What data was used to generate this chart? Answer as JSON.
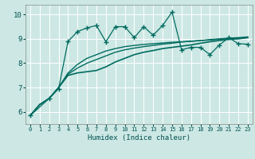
{
  "xlabel": "Humidex (Indice chaleur)",
  "background_color": "#cde8e4",
  "grid_color": "#ffffff",
  "line_color": "#006b60",
  "xlim": [
    -0.5,
    23.5
  ],
  "ylim": [
    5.5,
    10.4
  ],
  "yticks": [
    6,
    7,
    8,
    9,
    10
  ],
  "xticks": [
    0,
    1,
    2,
    3,
    4,
    5,
    6,
    7,
    8,
    9,
    10,
    11,
    12,
    13,
    14,
    15,
    16,
    17,
    18,
    19,
    20,
    21,
    22,
    23
  ],
  "series": [
    {
      "x": [
        0,
        1,
        2,
        3,
        4,
        5,
        6,
        7,
        8,
        9,
        10,
        11,
        12,
        13,
        14,
        15,
        16,
        17,
        18,
        19,
        20,
        21,
        22,
        23
      ],
      "y": [
        5.85,
        6.3,
        6.55,
        7.0,
        7.5,
        7.6,
        7.65,
        7.7,
        7.85,
        8.05,
        8.2,
        8.35,
        8.45,
        8.52,
        8.6,
        8.65,
        8.7,
        8.75,
        8.82,
        8.88,
        8.93,
        8.98,
        9.0,
        9.05
      ],
      "marker": null,
      "linestyle": "-",
      "linewidth": 1.2
    },
    {
      "x": [
        0,
        1,
        2,
        3,
        4,
        5,
        6,
        7,
        8,
        9,
        10,
        11,
        12,
        13,
        14,
        15,
        16,
        17,
        18,
        19,
        20,
        21,
        22,
        23
      ],
      "y": [
        5.85,
        6.3,
        6.55,
        7.0,
        7.55,
        7.8,
        8.0,
        8.15,
        8.3,
        8.45,
        8.55,
        8.62,
        8.68,
        8.73,
        8.78,
        8.82,
        8.87,
        8.9,
        8.93,
        8.97,
        9.0,
        9.03,
        9.05,
        9.08
      ],
      "marker": null,
      "linestyle": "-",
      "linewidth": 1.0
    },
    {
      "x": [
        0,
        1,
        2,
        3,
        4,
        5,
        6,
        7,
        8,
        9,
        10,
        11,
        12,
        13,
        14,
        15,
        16,
        17,
        18,
        19,
        20,
        21,
        22,
        23
      ],
      "y": [
        5.85,
        6.3,
        6.55,
        7.0,
        7.6,
        7.95,
        8.2,
        8.35,
        8.5,
        8.6,
        8.68,
        8.73,
        8.77,
        8.8,
        8.83,
        8.86,
        8.88,
        8.9,
        8.93,
        8.95,
        8.98,
        9.0,
        9.02,
        9.05
      ],
      "marker": null,
      "linestyle": "-",
      "linewidth": 1.0
    },
    {
      "x": [
        0,
        2,
        3,
        4,
        5,
        6,
        7,
        8,
        9,
        10,
        11,
        12,
        13,
        14,
        15,
        16,
        17,
        18,
        19,
        20,
        21,
        22,
        23
      ],
      "y": [
        5.85,
        6.55,
        6.95,
        8.9,
        9.3,
        9.45,
        9.55,
        8.88,
        9.5,
        9.5,
        9.05,
        9.5,
        9.15,
        9.55,
        10.1,
        8.55,
        8.65,
        8.65,
        8.35,
        8.75,
        9.05,
        8.8,
        8.78
      ],
      "marker": "+",
      "markersize": 4,
      "linestyle": "-",
      "linewidth": 0.9
    }
  ]
}
